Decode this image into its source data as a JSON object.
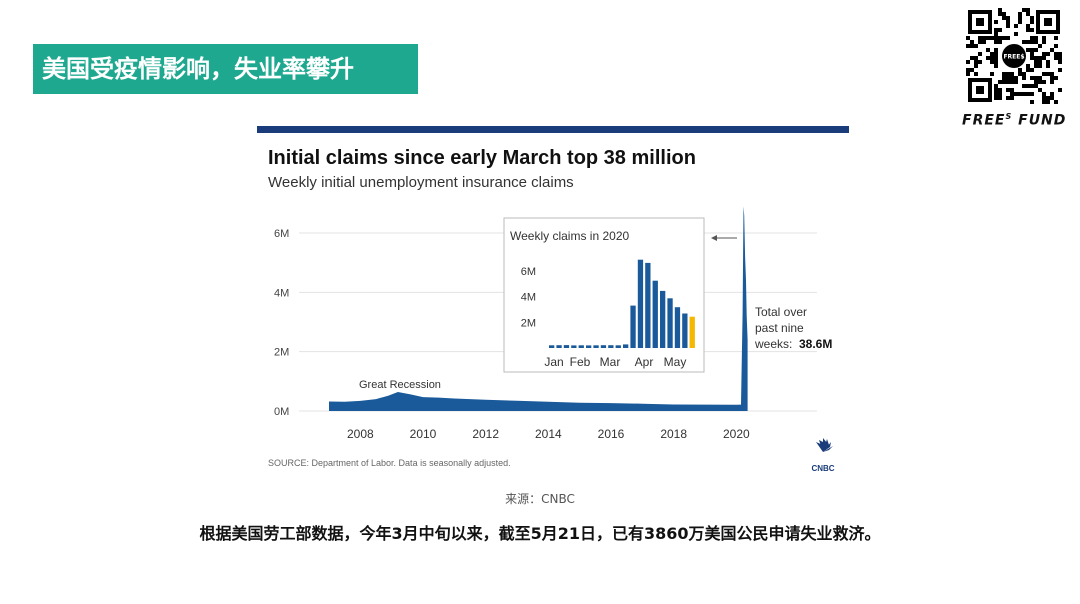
{
  "banner": {
    "title": "美国受疫情影响，失业率攀升"
  },
  "brand": {
    "name_left": "FREE",
    "name_sup": "S",
    "name_right": "FUND",
    "qr_center": "FREE$"
  },
  "chart_data": {
    "type": "area",
    "title": "Initial claims since early March top 38 million",
    "subtitle": "Weekly initial unemployment insurance claims",
    "y_ticks": [
      {
        "value": 0,
        "label": "0M"
      },
      {
        "value": 2000000,
        "label": "2M"
      },
      {
        "value": 4000000,
        "label": "4M"
      },
      {
        "value": 6000000,
        "label": "6M"
      }
    ],
    "x_ticks": [
      {
        "value": 2008,
        "label": "2008"
      },
      {
        "value": 2010,
        "label": "2010"
      },
      {
        "value": 2012,
        "label": "2012"
      },
      {
        "value": 2014,
        "label": "2014"
      },
      {
        "value": 2016,
        "label": "2016"
      },
      {
        "value": 2018,
        "label": "2018"
      },
      {
        "value": 2020,
        "label": "2020"
      }
    ],
    "xlim": [
      2007.0,
      2020.5
    ],
    "ylim": [
      0,
      6900000
    ],
    "series": [
      {
        "x": [
          2007.0,
          2007.5,
          2008.0,
          2008.5,
          2008.9,
          2009.2,
          2009.6,
          2010.0,
          2010.5,
          2011.0,
          2012.0,
          2013.0,
          2014.0,
          2015.0,
          2016.0,
          2017.0,
          2018.0,
          2019.0,
          2020.0,
          2020.15,
          2020.2,
          2020.23,
          2020.25,
          2020.28,
          2020.31,
          2020.33,
          2020.36
        ],
        "values": [
          320000,
          310000,
          340000,
          400000,
          520000,
          640000,
          560000,
          470000,
          450000,
          420000,
          380000,
          345000,
          310000,
          280000,
          265000,
          245000,
          220000,
          215000,
          210000,
          215000,
          3300000,
          6900000,
          6600000,
          5200000,
          4400000,
          3200000,
          2400000
        ]
      }
    ],
    "annotations": {
      "recession": "Great Recession",
      "total_text_lines": [
        "Total over",
        "past nine",
        "weeks:"
      ],
      "total_value": "38.6M"
    },
    "inset": {
      "title": "Weekly claims in 2020",
      "y_ticks": [
        {
          "value": 2000000,
          "label": "2M"
        },
        {
          "value": 4000000,
          "label": "4M"
        },
        {
          "value": 6000000,
          "label": "6M"
        }
      ],
      "ylim": [
        0,
        7000000
      ],
      "month_labels": [
        "Jan",
        "Feb",
        "Mar",
        "Apr",
        "May"
      ],
      "bars": [
        211000,
        220000,
        223000,
        202000,
        212000,
        206000,
        211000,
        216000,
        219000,
        211000,
        282000,
        3300000,
        6867000,
        6615000,
        5237000,
        4442000,
        3867000,
        3176000,
        2687000,
        2438000
      ],
      "highlight_color": "#f5b800",
      "bar_color": "#1a5a9a"
    },
    "source": "SOURCE: Department of Labor. Data is seasonally adjusted.",
    "logo": "CNBC",
    "colors": {
      "rule": "#1a3c7a",
      "area": "#1a5a9a",
      "highlight": "#f5b800"
    }
  },
  "caption": "来源：CNBC",
  "footnote": "根据美国劳工部数据，今年3月中旬以来，截至5月21日，已有3860万美国公民申请失业救济。"
}
